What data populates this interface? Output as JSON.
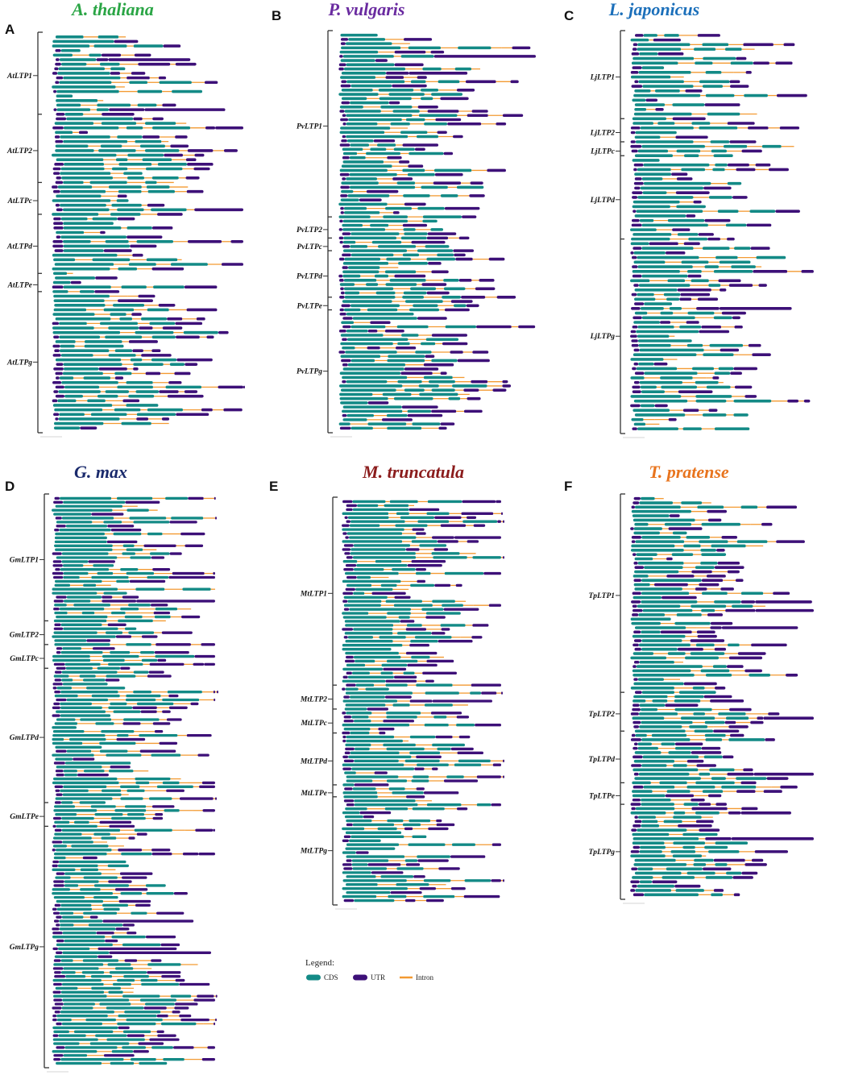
{
  "colors": {
    "cds": "#138a86",
    "utr": "#3d1078",
    "intron": "#f39a32"
  },
  "panels": [
    {
      "letter": "A",
      "species": "A. thaliana",
      "species_color": "#2aa545",
      "groups": [
        {
          "label": "AtLTP1",
          "genes": 18
        },
        {
          "label": "AtLTP2",
          "genes": 15
        },
        {
          "label": "AtLTPc",
          "genes": 7
        },
        {
          "label": "AtLTPd",
          "genes": 13
        },
        {
          "label": "AtLTPe",
          "genes": 4
        },
        {
          "label": "AtLTPg",
          "genes": 30
        }
      ]
    },
    {
      "letter": "B",
      "species": "P. vulgaris",
      "species_color": "#6a2ba0",
      "groups": [
        {
          "label": "PvLTP1",
          "genes": 44
        },
        {
          "label": "PvLTP2",
          "genes": 5
        },
        {
          "label": "PvLTPc",
          "genes": 3
        },
        {
          "label": "PvLTPd",
          "genes": 11
        },
        {
          "label": "PvLTPe",
          "genes": 3
        },
        {
          "label": "PvLTPg",
          "genes": 28
        }
      ]
    },
    {
      "letter": "C",
      "species": "L. japonicus",
      "species_color": "#1b6fba",
      "groups": [
        {
          "label": "LjLTP1",
          "genes": 19
        },
        {
          "label": "LjLTP2",
          "genes": 5
        },
        {
          "label": "LjLTPc",
          "genes": 3
        },
        {
          "label": "LjLTPd",
          "genes": 18
        },
        {
          "label": "LjLTPg",
          "genes": 41
        }
      ]
    },
    {
      "letter": "D",
      "species": "G. max",
      "species_color": "#1a2a6c",
      "groups": [
        {
          "label": "GmLTP1",
          "genes": 32
        },
        {
          "label": "GmLTP2",
          "genes": 6
        },
        {
          "label": "GmLTPc",
          "genes": 6
        },
        {
          "label": "GmLTPd",
          "genes": 34
        },
        {
          "label": "GmLTPe",
          "genes": 6
        },
        {
          "label": "GmLTPg",
          "genes": 60
        }
      ]
    },
    {
      "letter": "E",
      "species": "M. truncatula",
      "species_color": "#8b1c1c",
      "groups": [
        {
          "label": "MtLTP1",
          "genes": 47
        },
        {
          "label": "MtLTP2",
          "genes": 6
        },
        {
          "label": "MtLTPc",
          "genes": 6
        },
        {
          "label": "MtLTPd",
          "genes": 13
        },
        {
          "label": "MtLTPe",
          "genes": 3
        },
        {
          "label": "MtLTPg",
          "genes": 26
        }
      ]
    },
    {
      "letter": "F",
      "species": "T. pratense",
      "species_color": "#e8741e",
      "groups": [
        {
          "label": "TpLTP1",
          "genes": 46
        },
        {
          "label": "TpLTP2",
          "genes": 9
        },
        {
          "label": "TpLTPd",
          "genes": 12
        },
        {
          "label": "TpLTPe",
          "genes": 5
        },
        {
          "label": "TpLTPg",
          "genes": 21
        }
      ]
    }
  ],
  "legend": {
    "title": "Legend:",
    "items": [
      {
        "label": "CDS",
        "kind": "cds"
      },
      {
        "label": "UTR",
        "kind": "utr"
      },
      {
        "label": "Intron",
        "kind": "intron"
      }
    ]
  }
}
